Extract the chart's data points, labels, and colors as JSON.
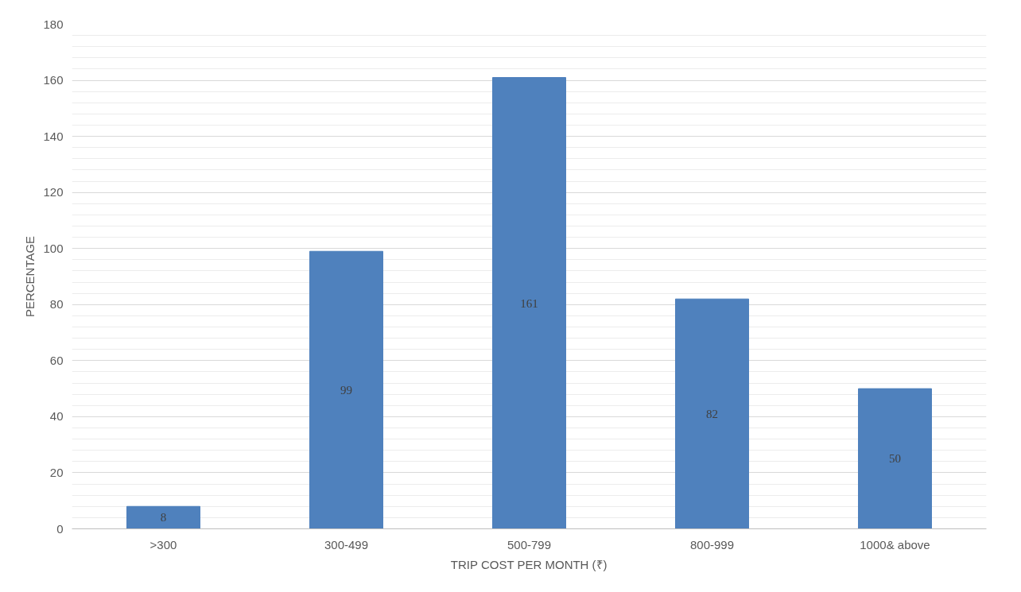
{
  "chart_data": {
    "type": "bar",
    "xlabel": "TRIP COST PER MONTH (₹)",
    "ylabel": "PERCENTAGE",
    "categories": [
      ">300",
      "300-499",
      "500-799",
      "800-999",
      "1000& above"
    ],
    "values": [
      8,
      99,
      161,
      82,
      50
    ],
    "color": "#4f81bd",
    "ylim": [
      0,
      180
    ],
    "yticks": [
      0,
      20,
      40,
      60,
      80,
      100,
      120,
      140,
      160,
      180
    ],
    "grid": "y",
    "data_labels": true
  }
}
